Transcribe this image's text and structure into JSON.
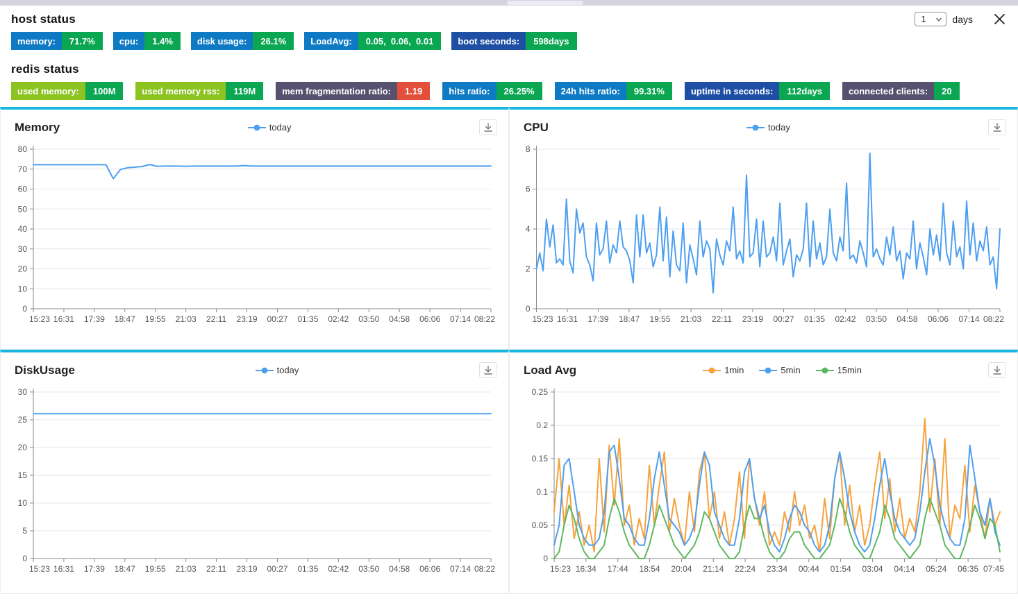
{
  "host": {
    "title": "host status"
  },
  "redis": {
    "title": "redis status"
  },
  "controls": {
    "days_value": "1",
    "days_label": "days"
  },
  "host_badges": [
    {
      "label": "memory:",
      "value": "71.7%",
      "label_bg": "#0e7ac4",
      "value_bg": "#0aa652"
    },
    {
      "label": "cpu:",
      "value": "1.4%",
      "label_bg": "#0e7ac4",
      "value_bg": "#0aa652"
    },
    {
      "label": "disk usage:",
      "value": "26.1%",
      "label_bg": "#0e7ac4",
      "value_bg": "#0aa652"
    },
    {
      "label": "LoadAvg:",
      "value": "0.05,  0.06,  0.01",
      "label_bg": "#0e7ac4",
      "value_bg": "#0aa652"
    },
    {
      "label": "boot seconds:",
      "value": "598days",
      "label_bg": "#1e4fa5",
      "value_bg": "#0aa652"
    }
  ],
  "redis_badges": [
    {
      "label": "used memory:",
      "value": "100M",
      "label_bg": "#8cc321",
      "value_bg": "#0aa652"
    },
    {
      "label": "used memory rss:",
      "value": "119M",
      "label_bg": "#8cc321",
      "value_bg": "#0aa652"
    },
    {
      "label": "mem fragmentation ratio:",
      "value": "1.19",
      "label_bg": "#57506e",
      "value_bg": "#e2503c"
    },
    {
      "label": "hits ratio:",
      "value": "26.25%",
      "label_bg": "#0e7ac4",
      "value_bg": "#0aa652"
    },
    {
      "label": "24h hits ratio:",
      "value": "99.31%",
      "label_bg": "#0e7ac4",
      "value_bg": "#0aa652"
    },
    {
      "label": "uptime in seconds:",
      "value": "112days",
      "label_bg": "#1e4fa5",
      "value_bg": "#0aa652"
    },
    {
      "label": "connected clients:",
      "value": "20",
      "label_bg": "#57506e",
      "value_bg": "#0aa652"
    }
  ],
  "chart_data": [
    {
      "id": "memory",
      "type": "line",
      "title": "Memory",
      "ylim": [
        0,
        80
      ],
      "y_ticks": [
        0,
        10,
        20,
        30,
        40,
        50,
        60,
        70,
        80
      ],
      "y_tick_labels": [
        "0",
        "10",
        "20",
        "30",
        "40",
        "50",
        "60",
        "70",
        "80"
      ],
      "x_ticks": [
        "15:23",
        "16:31",
        "17:39",
        "18:47",
        "19:55",
        "21:03",
        "22:11",
        "23:19",
        "00:27",
        "01:35",
        "02:42",
        "03:50",
        "04:58",
        "06:06",
        "07:14",
        "08:22"
      ],
      "grid": true,
      "legend_position": "top-center",
      "series": [
        {
          "name": "today",
          "color": "#4d9ff0",
          "values": [
            72.2,
            72.2,
            72.2,
            72.2,
            72.2,
            72.2,
            72.2,
            72.2,
            72.2,
            72.2,
            72.2,
            65.2,
            69.8,
            70.7,
            71.0,
            71.3,
            72.3,
            71.4,
            71.5,
            71.5,
            71.5,
            71.4,
            71.5,
            71.5,
            71.5,
            71.5,
            71.5,
            71.5,
            71.5,
            71.8,
            71.5,
            71.5,
            71.5,
            71.5,
            71.5,
            71.5,
            71.5,
            71.5,
            71.5,
            71.5,
            71.5,
            71.5,
            71.5,
            71.5,
            71.5,
            71.5,
            71.5,
            71.5,
            71.5,
            71.5,
            71.5,
            71.5,
            71.5,
            71.5,
            71.5,
            71.5,
            71.5,
            71.5,
            71.5,
            71.5,
            71.5,
            71.5,
            71.5,
            71.5
          ]
        }
      ]
    },
    {
      "id": "cpu",
      "type": "line",
      "title": "CPU",
      "ylim": [
        0,
        8
      ],
      "y_ticks": [
        0,
        2,
        4,
        6,
        8
      ],
      "y_tick_labels": [
        "0",
        "2",
        "4",
        "6",
        "8"
      ],
      "x_ticks": [
        "15:23",
        "16:31",
        "17:39",
        "18:47",
        "19:55",
        "21:03",
        "22:11",
        "23:19",
        "00:27",
        "01:35",
        "02:42",
        "03:50",
        "04:58",
        "06:06",
        "07:14",
        "08:22"
      ],
      "grid": true,
      "legend_position": "top-center",
      "series": [
        {
          "name": "today",
          "color": "#4d9ff0",
          "values": [
            2.0,
            2.8,
            1.9,
            4.5,
            3.1,
            4.2,
            2.3,
            2.5,
            2.2,
            5.5,
            2.4,
            1.8,
            5.0,
            3.8,
            4.3,
            2.6,
            2.2,
            1.4,
            4.3,
            2.7,
            3.0,
            4.4,
            2.3,
            3.2,
            2.8,
            4.4,
            3.1,
            2.9,
            2.4,
            1.3,
            4.7,
            2.6,
            4.7,
            2.8,
            3.3,
            2.1,
            2.7,
            5.1,
            2.4,
            4.6,
            1.6,
            3.9,
            2.2,
            1.9,
            4.3,
            1.3,
            3.2,
            2.5,
            1.7,
            4.4,
            2.6,
            3.4,
            3.0,
            0.8,
            3.5,
            2.7,
            2.2,
            3.4,
            2.9,
            5.1,
            2.5,
            2.9,
            2.3,
            6.7,
            2.6,
            2.8,
            4.5,
            2.1,
            4.4,
            2.6,
            2.8,
            3.6,
            2.4,
            5.3,
            2.2,
            2.9,
            3.5,
            1.6,
            2.7,
            2.4,
            3.0,
            5.3,
            2.1,
            4.4,
            2.5,
            3.3,
            2.2,
            2.6,
            5.0,
            2.8,
            2.4,
            3.6,
            2.9,
            6.3,
            2.5,
            2.7,
            2.3,
            3.4,
            2.8,
            2.1,
            7.8,
            2.6,
            3.0,
            2.5,
            2.2,
            3.6,
            2.7,
            4.1,
            2.4,
            2.9,
            1.5,
            2.8,
            2.5,
            4.4,
            2.0,
            3.3,
            2.6,
            1.7,
            4.0,
            2.7,
            3.7,
            2.4,
            5.3,
            2.8,
            2.2,
            4.4,
            2.6,
            3.1,
            2.0,
            5.4,
            2.7,
            4.3,
            2.4,
            3.4,
            2.9,
            4.1,
            2.2,
            2.6,
            1.0,
            4.0
          ]
        }
      ]
    },
    {
      "id": "diskusage",
      "type": "line",
      "title": "DiskUsage",
      "ylim": [
        0,
        30
      ],
      "y_ticks": [
        0,
        5,
        10,
        15,
        20,
        25,
        30
      ],
      "y_tick_labels": [
        "0",
        "5",
        "10",
        "15",
        "20",
        "25",
        "30"
      ],
      "x_ticks": [
        "15:23",
        "16:31",
        "17:39",
        "18:47",
        "19:55",
        "21:03",
        "22:11",
        "23:19",
        "00:27",
        "01:35",
        "02:42",
        "03:50",
        "04:58",
        "06:06",
        "07:14",
        "08:22"
      ],
      "grid": true,
      "legend_position": "top-center",
      "series": [
        {
          "name": "today",
          "color": "#4d9ff0",
          "values": [
            26.1,
            26.1
          ]
        }
      ]
    },
    {
      "id": "loadavg",
      "type": "line",
      "title": "Load Avg",
      "ylim": [
        0,
        0.25
      ],
      "y_ticks": [
        0,
        0.05,
        0.1,
        0.15,
        0.2,
        0.25
      ],
      "y_tick_labels": [
        "0",
        "0.05",
        "0.1",
        "0.15",
        "0.2",
        "0.25"
      ],
      "x_ticks": [
        "15:23",
        "16:34",
        "17:44",
        "18:54",
        "20:04",
        "21:14",
        "22:24",
        "23:34",
        "00:44",
        "01:54",
        "03:04",
        "04:14",
        "05:24",
        "06:35",
        "07:45"
      ],
      "grid": true,
      "legend_position": "top-center",
      "series": [
        {
          "name": "1min",
          "color": "#f6a23c",
          "values": [
            0.07,
            0.15,
            0.05,
            0.11,
            0.03,
            0.07,
            0.02,
            0.05,
            0.01,
            0.15,
            0.04,
            0.17,
            0.08,
            0.18,
            0.05,
            0.08,
            0.02,
            0.06,
            0.03,
            0.14,
            0.05,
            0.11,
            0.16,
            0.04,
            0.09,
            0.05,
            0.02,
            0.1,
            0.04,
            0.13,
            0.16,
            0.06,
            0.1,
            0.03,
            0.07,
            0.02,
            0.06,
            0.13,
            0.03,
            0.15,
            0.09,
            0.05,
            0.1,
            0.02,
            0.04,
            0.02,
            0.07,
            0.04,
            0.1,
            0.05,
            0.08,
            0.03,
            0.05,
            0.01,
            0.09,
            0.03,
            0.12,
            0.16,
            0.05,
            0.11,
            0.04,
            0.08,
            0.02,
            0.05,
            0.11,
            0.16,
            0.06,
            0.12,
            0.04,
            0.09,
            0.03,
            0.06,
            0.04,
            0.1,
            0.21,
            0.07,
            0.15,
            0.05,
            0.18,
            0.03,
            0.08,
            0.06,
            0.14,
            0.04,
            0.11,
            0.07,
            0.03,
            0.09,
            0.05,
            0.07
          ]
        },
        {
          "name": "5min",
          "color": "#4d9ff0",
          "values": [
            0.02,
            0.05,
            0.14,
            0.15,
            0.1,
            0.05,
            0.03,
            0.02,
            0.02,
            0.03,
            0.07,
            0.16,
            0.17,
            0.12,
            0.06,
            0.05,
            0.03,
            0.02,
            0.02,
            0.06,
            0.12,
            0.16,
            0.11,
            0.06,
            0.05,
            0.04,
            0.02,
            0.03,
            0.05,
            0.11,
            0.16,
            0.14,
            0.07,
            0.05,
            0.03,
            0.02,
            0.02,
            0.06,
            0.13,
            0.15,
            0.09,
            0.06,
            0.08,
            0.04,
            0.02,
            0.01,
            0.03,
            0.06,
            0.08,
            0.07,
            0.05,
            0.04,
            0.02,
            0.01,
            0.02,
            0.05,
            0.12,
            0.16,
            0.12,
            0.07,
            0.04,
            0.02,
            0.01,
            0.02,
            0.06,
            0.11,
            0.15,
            0.1,
            0.06,
            0.04,
            0.03,
            0.02,
            0.03,
            0.07,
            0.13,
            0.18,
            0.14,
            0.08,
            0.05,
            0.03,
            0.02,
            0.02,
            0.06,
            0.17,
            0.12,
            0.07,
            0.05,
            0.09,
            0.04,
            0.02
          ]
        },
        {
          "name": "15min",
          "color": "#5cb860",
          "values": [
            0.0,
            0.01,
            0.05,
            0.08,
            0.06,
            0.03,
            0.01,
            0.0,
            0.0,
            0.01,
            0.02,
            0.06,
            0.09,
            0.07,
            0.04,
            0.02,
            0.01,
            0.0,
            0.0,
            0.02,
            0.05,
            0.08,
            0.06,
            0.04,
            0.02,
            0.01,
            0.0,
            0.01,
            0.02,
            0.04,
            0.07,
            0.06,
            0.04,
            0.02,
            0.01,
            0.0,
            0.0,
            0.01,
            0.05,
            0.08,
            0.06,
            0.06,
            0.03,
            0.01,
            0.0,
            0.0,
            0.01,
            0.03,
            0.04,
            0.04,
            0.02,
            0.01,
            0.0,
            0.0,
            0.01,
            0.02,
            0.05,
            0.09,
            0.07,
            0.04,
            0.02,
            0.01,
            0.0,
            0.0,
            0.02,
            0.04,
            0.08,
            0.06,
            0.03,
            0.02,
            0.01,
            0.0,
            0.01,
            0.02,
            0.06,
            0.09,
            0.07,
            0.05,
            0.02,
            0.01,
            0.0,
            0.0,
            0.02,
            0.05,
            0.08,
            0.06,
            0.03,
            0.06,
            0.05,
            0.01
          ]
        }
      ]
    }
  ]
}
